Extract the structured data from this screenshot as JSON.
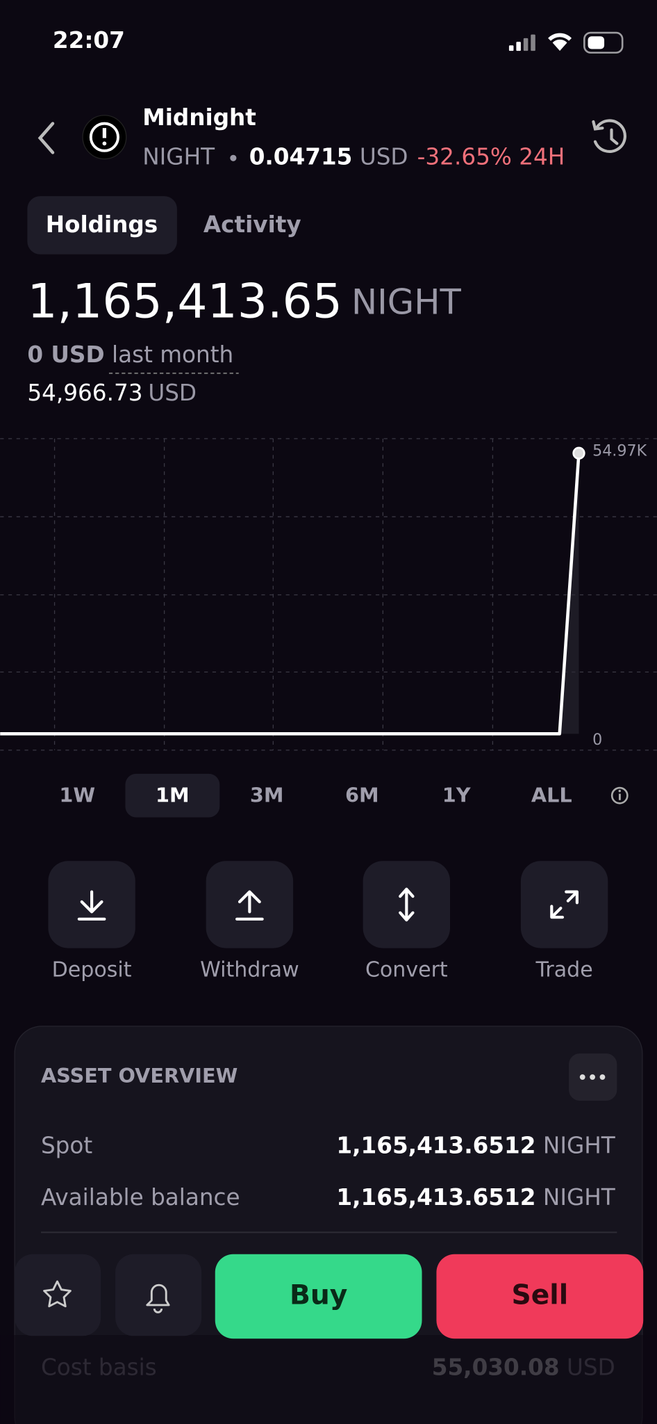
{
  "status": {
    "time": "22:07"
  },
  "header": {
    "name": "Midnight",
    "ticker": "NIGHT",
    "price": "0.04715",
    "currency": "USD",
    "change": "-32.65% 24H"
  },
  "tabs": [
    "Holdings",
    "Activity"
  ],
  "balance": {
    "amount": "1,165,413.65",
    "unit": "NIGHT",
    "sub_value": "0 USD",
    "sub_period": "last month",
    "usd_value": "54,966.73",
    "usd_unit": "USD"
  },
  "chart_data": {
    "type": "line",
    "color": "#ffffff",
    "values": [
      0,
      0,
      0,
      0,
      0,
      0,
      0,
      0,
      0,
      0,
      0,
      0,
      0,
      0,
      0,
      0,
      0,
      0,
      0,
      0,
      0,
      0,
      0,
      0,
      0,
      0,
      0,
      0,
      0,
      0,
      54966.73
    ],
    "ylim": [
      0,
      54970
    ],
    "yticks": [
      0,
      {
        "value": 54970,
        "label": "54.97K"
      }
    ]
  },
  "ranges": [
    "1W",
    "1M",
    "3M",
    "6M",
    "1Y",
    "ALL"
  ],
  "actions": [
    "Deposit",
    "Withdraw",
    "Convert",
    "Trade"
  ],
  "overview": {
    "title": "ASSET OVERVIEW",
    "rows": [
      [
        "Spot",
        "1,165,413.6512",
        "NIGHT"
      ],
      [
        "Available balance",
        "1,165,413.6512",
        "NIGHT"
      ],
      [
        "Cost basis",
        "55,030.08",
        "USD"
      ]
    ]
  },
  "buttons": {
    "buy": "Buy",
    "sell": "Sell"
  }
}
